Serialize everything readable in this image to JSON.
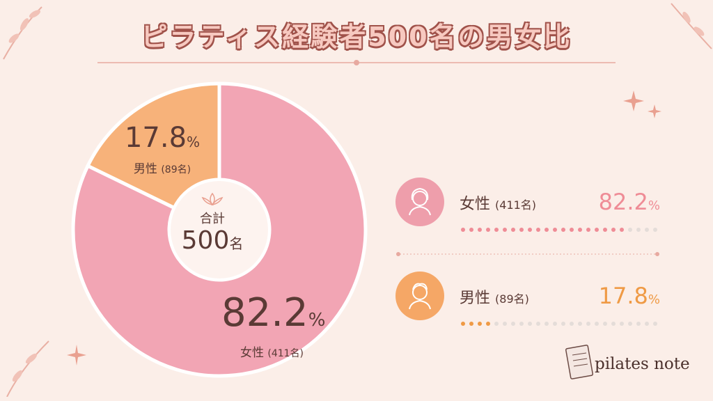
{
  "title": "ピラティス経験者500名の男女比",
  "center": {
    "label": "合計",
    "value": "500",
    "unit": "名"
  },
  "chart_data": {
    "type": "pie",
    "title": "ピラティス経験者500名の男女比",
    "slices": [
      {
        "name": "女性",
        "count_label": "(411名)",
        "value": 82.2,
        "pct_label": "82.2",
        "color": "#f2a5b4"
      },
      {
        "name": "男性",
        "count_label": "(89名)",
        "value": 17.8,
        "pct_label": "17.8",
        "color": "#f7b27a"
      }
    ],
    "unit": "%"
  },
  "legend": {
    "female": {
      "name": "女性",
      "count": "(411名)",
      "pct": "82.2",
      "unit": "%",
      "icon": "woman-icon",
      "color": "#ef8c96"
    },
    "male": {
      "name": "男性",
      "count": "(89名)",
      "pct": "17.8",
      "unit": "%",
      "icon": "man-icon",
      "color": "#ef9a45"
    }
  },
  "brand": {
    "name": "pilates note",
    "icon": "notebook-icon"
  }
}
